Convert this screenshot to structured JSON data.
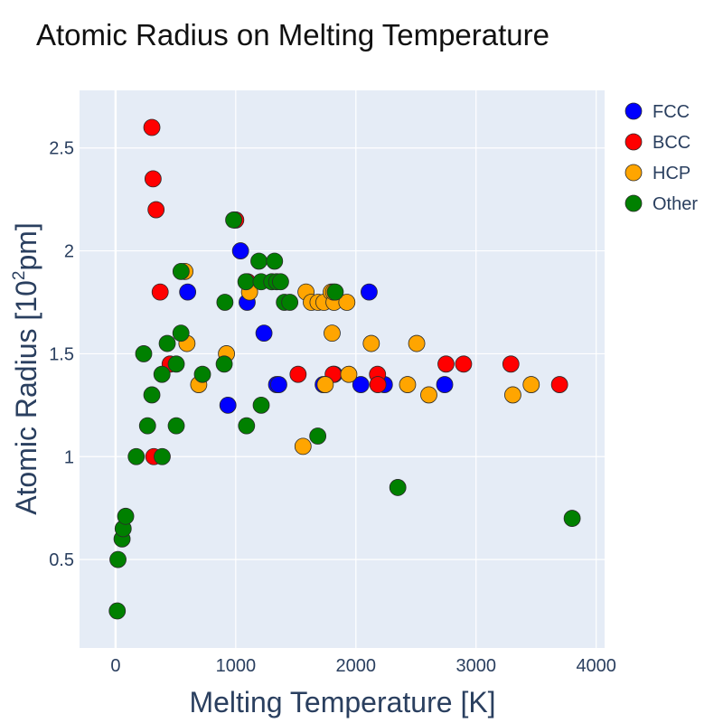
{
  "chart_data": {
    "type": "scatter",
    "title": "Atomic Radius on Melting Temperature",
    "xlabel": "Melting Temperature [K]",
    "ylabel_prefix": "Atomic Radius [10",
    "ylabel_sup": "2",
    "ylabel_suffix": "pm]",
    "xlim": [
      -300,
      4070
    ],
    "ylim": [
      0.07,
      2.78
    ],
    "x_ticks": [
      0,
      1000,
      2000,
      3000,
      4000
    ],
    "x_tick_labels": [
      "0",
      "1000",
      "2000",
      "3000",
      "4000"
    ],
    "y_ticks": [
      0.5,
      1,
      1.5,
      2,
      2.5
    ],
    "y_tick_labels": [
      "0.5",
      "1",
      "1.5",
      "2",
      "2.5"
    ],
    "plot_bg": "#e5ecf6",
    "grid": true,
    "legend_position": "top-right",
    "series": [
      {
        "name": "FCC",
        "color": "#0000ff",
        "points": [
          [
            600,
            1.8
          ],
          [
            935,
            1.25
          ],
          [
            1040,
            2.0
          ],
          [
            1095,
            1.75
          ],
          [
            1235,
            1.6
          ],
          [
            1340,
            1.35
          ],
          [
            1358,
            1.35
          ],
          [
            1728,
            1.35
          ],
          [
            1820,
            1.4
          ],
          [
            2041,
            1.35
          ],
          [
            2110,
            1.8
          ],
          [
            2237,
            1.35
          ],
          [
            2739,
            1.35
          ]
        ]
      },
      {
        "name": "BCC",
        "color": "#ff0000",
        "points": [
          [
            302,
            2.6
          ],
          [
            312,
            2.35
          ],
          [
            337,
            2.2
          ],
          [
            371,
            1.8
          ],
          [
            318,
            1.0
          ],
          [
            454,
            1.45
          ],
          [
            1000,
            2.15
          ],
          [
            1099,
            1.85
          ],
          [
            1519,
            1.4
          ],
          [
            1811,
            1.4
          ],
          [
            2180,
            1.4
          ],
          [
            2183,
            1.35
          ],
          [
            2750,
            1.45
          ],
          [
            2896,
            1.45
          ],
          [
            3290,
            1.45
          ],
          [
            3695,
            1.35
          ]
        ]
      },
      {
        "name": "HCP",
        "color": "#ffa500",
        "points": [
          [
            577,
            1.9
          ],
          [
            594,
            1.55
          ],
          [
            692,
            1.35
          ],
          [
            923,
            1.5
          ],
          [
            1115,
            1.8
          ],
          [
            1560,
            1.05
          ],
          [
            1585,
            1.8
          ],
          [
            1629,
            1.75
          ],
          [
            1685,
            1.75
          ],
          [
            1734,
            1.75
          ],
          [
            1745,
            1.35
          ],
          [
            1795,
            1.8
          ],
          [
            1802,
            1.6
          ],
          [
            1818,
            1.75
          ],
          [
            1814,
            1.8
          ],
          [
            1925,
            1.75
          ],
          [
            1941,
            1.4
          ],
          [
            2128,
            1.55
          ],
          [
            2430,
            1.35
          ],
          [
            2506,
            1.55
          ],
          [
            2607,
            1.3
          ],
          [
            3306,
            1.3
          ],
          [
            3459,
            1.35
          ]
        ]
      },
      {
        "name": "Other",
        "color": "#008000",
        "points": [
          [
            14,
            0.25
          ],
          [
            20,
            0.5
          ],
          [
            54,
            0.6
          ],
          [
            63,
            0.65
          ],
          [
            84,
            0.71
          ],
          [
            172,
            1.0
          ],
          [
            234,
            1.5
          ],
          [
            266,
            1.15
          ],
          [
            302,
            1.3
          ],
          [
            386,
            1.4
          ],
          [
            388,
            1.0
          ],
          [
            430,
            1.55
          ],
          [
            505,
            1.15
          ],
          [
            505,
            1.45
          ],
          [
            545,
            1.9
          ],
          [
            544,
            1.6
          ],
          [
            723,
            1.4
          ],
          [
            904,
            1.45
          ],
          [
            910,
            1.75
          ],
          [
            983,
            2.15
          ],
          [
            1090,
            1.15
          ],
          [
            1085,
            1.85
          ],
          [
            1193,
            1.95
          ],
          [
            1211,
            1.85
          ],
          [
            1212,
            1.25
          ],
          [
            1300,
            1.85
          ],
          [
            1323,
            1.95
          ],
          [
            1341,
            1.85
          ],
          [
            1373,
            1.85
          ],
          [
            1405,
            1.75
          ],
          [
            1450,
            1.75
          ],
          [
            1683,
            1.1
          ],
          [
            1828,
            1.8
          ],
          [
            2349,
            0.85
          ],
          [
            3800,
            0.7
          ]
        ]
      }
    ]
  }
}
